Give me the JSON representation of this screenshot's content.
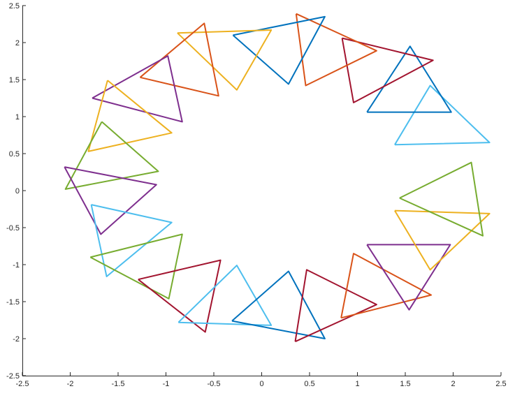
{
  "chart_data": {
    "type": "line",
    "title": "",
    "xlabel": "",
    "ylabel": "",
    "xlim": [
      -2.5,
      2.5
    ],
    "ylim": [
      -2.5,
      2.5
    ],
    "xticks": [
      -2.5,
      -2,
      -1.5,
      -1,
      -0.5,
      0,
      0.5,
      1,
      1.5,
      2,
      2.5
    ],
    "yticks": [
      -2.5,
      -2,
      -1.5,
      -1,
      -0.5,
      0,
      0.5,
      1,
      1.5,
      2,
      2.5
    ],
    "xtick_labels": [
      "-2.5",
      "-2",
      "-1.5",
      "-1",
      "-0.5",
      "0",
      "0.5",
      "1",
      "1.5",
      "2",
      "2.5"
    ],
    "ytick_labels": [
      "-2.5",
      "-2",
      "-1.5",
      "-1",
      "-0.5",
      "0",
      "0.5",
      "1",
      "1.5",
      "2",
      "2.5"
    ],
    "grid": false,
    "series": [
      {
        "color": "#4DBEEE",
        "points": [
          [
            1.39,
            0.62
          ],
          [
            2.38,
            0.65
          ],
          [
            1.76,
            1.42
          ],
          [
            1.39,
            0.62
          ]
        ]
      },
      {
        "color": "#0072BD",
        "points": [
          [
            1.1,
            1.06
          ],
          [
            1.98,
            1.06
          ],
          [
            1.55,
            1.95
          ],
          [
            1.1,
            1.06
          ]
        ]
      },
      {
        "color": "#A2142F",
        "points": [
          [
            0.84,
            2.06
          ],
          [
            1.79,
            1.76
          ],
          [
            0.96,
            1.19
          ],
          [
            0.84,
            2.06
          ]
        ]
      },
      {
        "color": "#D95319",
        "points": [
          [
            0.36,
            2.39
          ],
          [
            1.2,
            1.89
          ],
          [
            0.46,
            1.42
          ],
          [
            0.36,
            2.39
          ]
        ]
      },
      {
        "color": "#0072BD",
        "points": [
          [
            -0.3,
            2.1
          ],
          [
            0.66,
            2.35
          ],
          [
            0.28,
            1.44
          ],
          [
            -0.3,
            2.1
          ]
        ]
      },
      {
        "color": "#EDB120",
        "points": [
          [
            -0.88,
            2.13
          ],
          [
            0.1,
            2.17
          ],
          [
            -0.26,
            1.36
          ],
          [
            -0.88,
            2.13
          ]
        ]
      },
      {
        "color": "#D95319",
        "points": [
          [
            -1.27,
            1.53
          ],
          [
            -0.45,
            1.28
          ],
          [
            -0.6,
            2.26
          ],
          [
            -1.27,
            1.53
          ]
        ]
      },
      {
        "color": "#7E2F8E",
        "points": [
          [
            -1.77,
            1.25
          ],
          [
            -0.83,
            0.93
          ],
          [
            -0.98,
            1.82
          ],
          [
            -1.77,
            1.25
          ]
        ]
      },
      {
        "color": "#EDB120",
        "points": [
          [
            -1.61,
            1.49
          ],
          [
            -0.94,
            0.78
          ],
          [
            -1.81,
            0.53
          ],
          [
            -1.61,
            1.49
          ]
        ]
      },
      {
        "color": "#77AC30",
        "points": [
          [
            -1.67,
            0.93
          ],
          [
            -1.08,
            0.26
          ],
          [
            -2.05,
            0.02
          ],
          [
            -1.67,
            0.93
          ]
        ]
      },
      {
        "color": "#7E2F8E",
        "points": [
          [
            -2.06,
            0.32
          ],
          [
            -1.1,
            0.08
          ],
          [
            -1.68,
            -0.59
          ],
          [
            -2.06,
            0.32
          ]
        ]
      },
      {
        "color": "#4DBEEE",
        "points": [
          [
            -1.78,
            -0.19
          ],
          [
            -0.94,
            -0.43
          ],
          [
            -1.62,
            -1.16
          ],
          [
            -1.78,
            -0.19
          ]
        ]
      },
      {
        "color": "#77AC30",
        "points": [
          [
            -1.79,
            -0.9
          ],
          [
            -0.83,
            -0.59
          ],
          [
            -0.97,
            -1.46
          ],
          [
            -1.79,
            -0.9
          ]
        ]
      },
      {
        "color": "#A2142F",
        "points": [
          [
            -1.29,
            -1.2
          ],
          [
            -0.43,
            -0.94
          ],
          [
            -0.59,
            -1.91
          ],
          [
            -1.29,
            -1.2
          ]
        ]
      },
      {
        "color": "#4DBEEE",
        "points": [
          [
            -0.87,
            -1.78
          ],
          [
            0.1,
            -1.82
          ],
          [
            -0.26,
            -1.01
          ],
          [
            -0.87,
            -1.78
          ]
        ]
      },
      {
        "color": "#0072BD",
        "points": [
          [
            -0.31,
            -1.76
          ],
          [
            0.28,
            -1.09
          ],
          [
            0.66,
            -2.0
          ],
          [
            -0.31,
            -1.76
          ]
        ]
      },
      {
        "color": "#A2142F",
        "points": [
          [
            0.35,
            -2.04
          ],
          [
            0.47,
            -1.07
          ],
          [
            1.2,
            -1.54
          ],
          [
            0.35,
            -2.04
          ]
        ]
      },
      {
        "color": "#D95319",
        "points": [
          [
            0.83,
            -1.72
          ],
          [
            0.96,
            -0.85
          ],
          [
            1.77,
            -1.41
          ],
          [
            0.83,
            -1.72
          ]
        ]
      },
      {
        "color": "#7E2F8E",
        "points": [
          [
            1.1,
            -0.73
          ],
          [
            1.97,
            -0.73
          ],
          [
            1.54,
            -1.61
          ],
          [
            1.1,
            -0.73
          ]
        ]
      },
      {
        "color": "#EDB120",
        "points": [
          [
            1.39,
            -0.27
          ],
          [
            2.38,
            -0.31
          ],
          [
            1.76,
            -1.07
          ],
          [
            1.39,
            -0.27
          ]
        ]
      },
      {
        "color": "#77AC30",
        "points": [
          [
            1.44,
            -0.1
          ],
          [
            2.19,
            0.38
          ],
          [
            2.31,
            -0.61
          ],
          [
            1.44,
            -0.1
          ]
        ]
      }
    ]
  }
}
